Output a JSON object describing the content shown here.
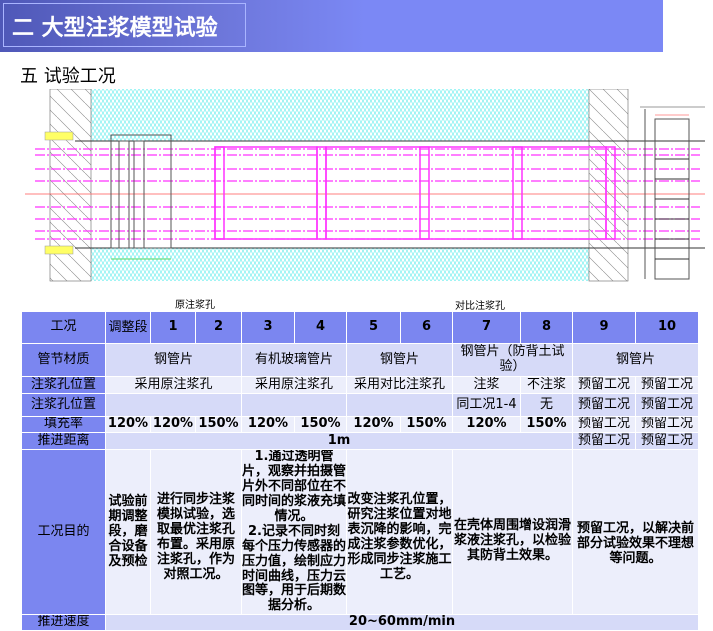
{
  "header": {
    "title": "二 大型注浆模型试验",
    "subtitle": "五 试验工况"
  },
  "drawing_labels": {
    "original_holes": "原注浆孔",
    "compare_holes": "对比注浆孔"
  },
  "colors": {
    "banner": "#7b88f5",
    "table_header": "#7b86f0",
    "table_cell": "#d6daf8",
    "highlight_text": "#e01010",
    "pipe": "#ff33ff",
    "soil": "#66eeee"
  },
  "table": {
    "header": [
      "工况",
      "调整段",
      "1",
      "2",
      "3",
      "4",
      "5",
      "6",
      "7",
      "8",
      "9",
      "10"
    ],
    "material": {
      "label": "管节材质",
      "values": [
        "钢管片",
        "有机玻璃管片",
        "钢管片",
        "钢管片（防背土试验）",
        "钢管片"
      ]
    },
    "hole_pos_1": {
      "label": "注浆孔位置",
      "values": [
        "采用原注浆孔",
        "采用原注浆孔",
        "采用对比注浆孔",
        "注浆",
        "不注浆",
        "预留工况",
        "预留工况"
      ]
    },
    "hole_pos_2": {
      "label": "注浆孔位置",
      "values": [
        "",
        "",
        "",
        "同工况1-4",
        "无",
        "预留工况",
        "预留工况"
      ]
    },
    "fill_rate": {
      "label": "填充率",
      "values": [
        "120%",
        "120%",
        "150%",
        "120%",
        "150%",
        "120%",
        "150%",
        "120%",
        "150%",
        "预留工况",
        "预留工况"
      ]
    },
    "distance": {
      "label": "推进距离",
      "values": [
        "1m",
        "预留工况",
        "预留工况"
      ]
    },
    "purpose": {
      "label": "工况目的",
      "values": [
        "试验前期调整段，磨合设备及预检",
        "进行同步注浆模拟试验，选取最优注浆孔布置。采用原注浆孔，作为对照工况。",
        "1.通过透明管片，观察并拍摄管片外不同部位在不同时间的浆液充填情况。\n2.记录不同时刻每个压力传感器的压力值，绘制应力时间曲线，压力云图等，用于后期数据分析。",
        "改变注浆孔位置，研究注浆位置对地表沉降的影响，完成注浆参数优化，形成同步注浆施工工艺。",
        "在壳体周围增设润滑浆液注浆孔，以检验其防背土效果。",
        "预留工况，以解决前部分试验效果不理想等问题。"
      ]
    },
    "speed": {
      "label": "推进速度",
      "value": "20~60mm/min"
    }
  }
}
